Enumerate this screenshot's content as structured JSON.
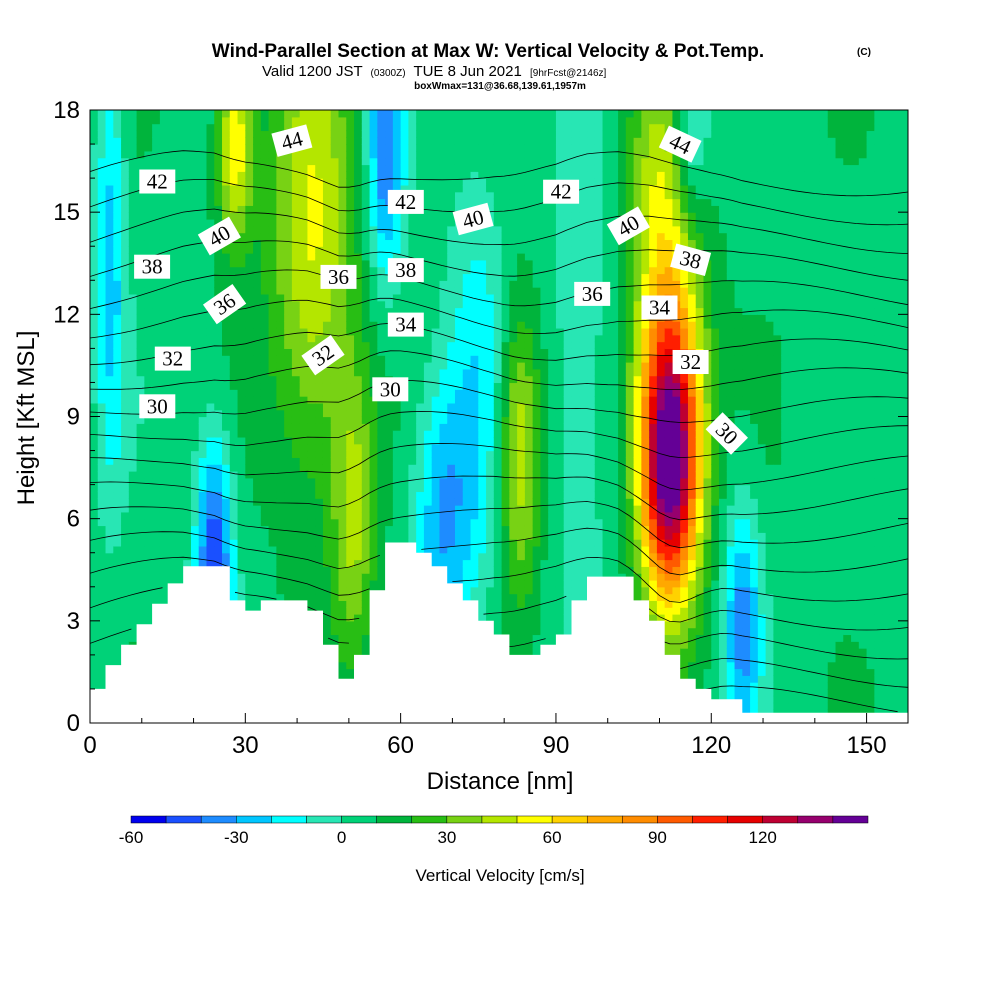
{
  "header": {
    "title": "Wind-Parallel Section at Max W: Vertical Velocity & Pot.Temp.",
    "copyright": "(C)",
    "valid_main": "Valid 1200 JST",
    "valid_utc": "(0300Z)",
    "valid_date": "TUE 8 Jun 2021",
    "forecast_tag": "[9hrFcst@2146z]",
    "box_info": "boxWmax=131@36.68,139.61,1957m"
  },
  "chart_data": {
    "type": "heatmap",
    "xlabel": "Distance [nm]",
    "ylabel": "Height [Kft MSL]",
    "xlim": [
      0,
      158
    ],
    "ylim": [
      0,
      18
    ],
    "x_ticks": [
      0,
      30,
      60,
      90,
      120,
      150
    ],
    "y_ticks": [
      0,
      3,
      6,
      9,
      12,
      15,
      18
    ],
    "colorbar": {
      "label": "Vertical Velocity [cm/s]",
      "min": -60,
      "step": 10,
      "colors": [
        "#0000ee",
        "#1a50ff",
        "#1e8cff",
        "#00c6ff",
        "#00ffff",
        "#28e6b4",
        "#00d278",
        "#00b43c",
        "#28be14",
        "#78d214",
        "#b4e600",
        "#ffff00",
        "#ffd200",
        "#ffa800",
        "#ff8c00",
        "#ff5a00",
        "#ff1e00",
        "#e60000",
        "#be0032",
        "#96006e",
        "#640096"
      ],
      "tick_values": [
        -60,
        -30,
        0,
        30,
        60,
        90,
        120
      ]
    },
    "vertical_velocity_features": [
      {
        "x": 112,
        "y": 7.5,
        "value": 131,
        "sx": 4,
        "sy": 2.8
      },
      {
        "x": 112,
        "y": 10.5,
        "value": 45,
        "sx": 5,
        "sy": 3.5
      },
      {
        "x": 28,
        "y": 17,
        "value": 55,
        "sx": 2.5,
        "sy": 2
      },
      {
        "x": 43,
        "y": 14,
        "value": 45,
        "sx": 6,
        "sy": 5
      },
      {
        "x": 51,
        "y": 6,
        "value": 35,
        "sx": 3,
        "sy": 3
      },
      {
        "x": 83,
        "y": 8,
        "value": 45,
        "sx": 3,
        "sy": 3
      },
      {
        "x": 110,
        "y": 16,
        "value": 30,
        "sx": 5,
        "sy": 3
      },
      {
        "x": 24,
        "y": 5,
        "value": -55,
        "sx": 2.5,
        "sy": 2.5
      },
      {
        "x": 57,
        "y": 17,
        "value": -45,
        "sx": 2.5,
        "sy": 3
      },
      {
        "x": 68,
        "y": 6,
        "value": -35,
        "sx": 4,
        "sy": 3
      },
      {
        "x": 4,
        "y": 14,
        "value": -30,
        "sx": 2,
        "sy": 5
      },
      {
        "x": 116,
        "y": 17.5,
        "value": -35,
        "sx": 2.5,
        "sy": 2
      },
      {
        "x": 126,
        "y": 3,
        "value": -40,
        "sx": 2.5,
        "sy": 2.5
      },
      {
        "x": 75,
        "y": 10,
        "value": -20,
        "sx": 4,
        "sy": 5
      },
      {
        "x": 95,
        "y": 10,
        "value": -15,
        "sx": 5,
        "sy": 5
      }
    ],
    "terrain_profile": {
      "x": [
        0,
        3,
        6,
        9,
        12,
        15,
        18,
        21,
        24,
        27,
        30,
        33,
        36,
        39,
        42,
        45,
        48,
        51,
        54,
        57,
        60,
        63,
        66,
        69,
        72,
        75,
        78,
        81,
        84,
        87,
        90,
        93,
        96,
        99,
        102,
        105,
        108,
        111,
        114,
        117,
        120,
        123,
        126,
        158
      ],
      "height": [
        1.0,
        1.7,
        2.3,
        2.9,
        3.5,
        4.1,
        4.6,
        4.6,
        4.6,
        3.6,
        3.3,
        3.6,
        3.6,
        3.6,
        3.3,
        2.3,
        1.3,
        2.0,
        3.9,
        5.3,
        5.3,
        5.0,
        4.6,
        4.1,
        3.6,
        3.0,
        2.6,
        2.0,
        2.0,
        2.3,
        2.6,
        3.6,
        4.3,
        4.3,
        4.3,
        3.6,
        3.0,
        2.0,
        1.3,
        1.0,
        0.7,
        0.7,
        0.3,
        0.3
      ]
    },
    "theta_contours": {
      "levels": [
        24,
        25,
        26,
        27,
        28,
        29,
        30,
        31,
        32,
        33,
        34,
        35,
        36,
        37,
        38,
        39,
        40,
        41,
        42,
        43,
        44,
        45
      ],
      "labels": [
        {
          "text": "44",
          "x": 39,
          "y": 17.1,
          "angle": -15
        },
        {
          "text": "42",
          "x": 13,
          "y": 15.9,
          "angle": 0
        },
        {
          "text": "42",
          "x": 61,
          "y": 15.3,
          "angle": 0
        },
        {
          "text": "42",
          "x": 91,
          "y": 15.6,
          "angle": 0
        },
        {
          "text": "44",
          "x": 114,
          "y": 17.0,
          "angle": 25
        },
        {
          "text": "40",
          "x": 25,
          "y": 14.3,
          "angle": -30
        },
        {
          "text": "40",
          "x": 74,
          "y": 14.8,
          "angle": -15
        },
        {
          "text": "40",
          "x": 104,
          "y": 14.6,
          "angle": -30
        },
        {
          "text": "38",
          "x": 12,
          "y": 13.4,
          "angle": 0
        },
        {
          "text": "38",
          "x": 61,
          "y": 13.3,
          "angle": 0
        },
        {
          "text": "38",
          "x": 116,
          "y": 13.6,
          "angle": 15
        },
        {
          "text": "36",
          "x": 48,
          "y": 13.1,
          "angle": 0
        },
        {
          "text": "36",
          "x": 26,
          "y": 12.3,
          "angle": -35
        },
        {
          "text": "36",
          "x": 97,
          "y": 12.6,
          "angle": 0
        },
        {
          "text": "34",
          "x": 61,
          "y": 11.7,
          "angle": 0
        },
        {
          "text": "34",
          "x": 110,
          "y": 12.2,
          "angle": 0
        },
        {
          "text": "32",
          "x": 16,
          "y": 10.7,
          "angle": 0
        },
        {
          "text": "32",
          "x": 45,
          "y": 10.8,
          "angle": -35
        },
        {
          "text": "32",
          "x": 116,
          "y": 10.6,
          "angle": 0
        },
        {
          "text": "30",
          "x": 13,
          "y": 9.3,
          "angle": 0
        },
        {
          "text": "30",
          "x": 58,
          "y": 9.8,
          "angle": 0
        },
        {
          "text": "30",
          "x": 123,
          "y": 8.5,
          "angle": 45
        }
      ]
    }
  }
}
